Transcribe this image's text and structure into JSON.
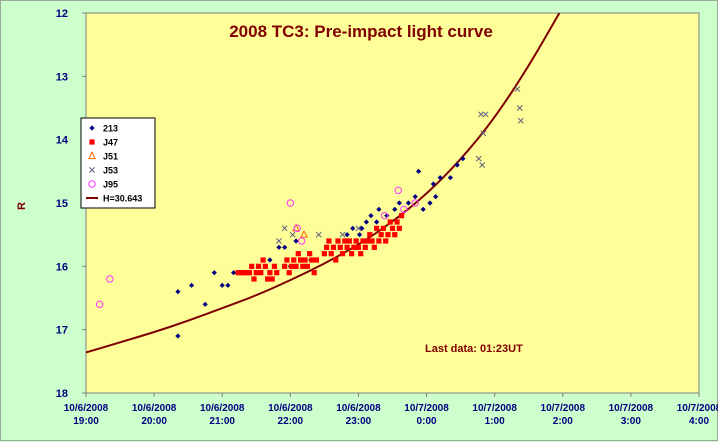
{
  "chart_data": {
    "type": "scatter",
    "title": "2008 TC3: Pre-impact light curve",
    "xlabel": "",
    "ylabel": "R",
    "annotation": "Last data: 01:23UT",
    "ylim": [
      12,
      18
    ],
    "y_inverted": true,
    "yticks": [
      "12",
      "13",
      "14",
      "15",
      "16",
      "17",
      "18"
    ],
    "xlim": [
      "2008-10-06T19:00",
      "2008-10-07T04:00"
    ],
    "xticks": [
      {
        "date": "10/6/2008",
        "time": "19:00"
      },
      {
        "date": "10/6/2008",
        "time": "20:00"
      },
      {
        "date": "10/6/2008",
        "time": "21:00"
      },
      {
        "date": "10/6/2008",
        "time": "22:00"
      },
      {
        "date": "10/6/2008",
        "time": "23:00"
      },
      {
        "date": "10/7/2008",
        "time": "0:00"
      },
      {
        "date": "10/7/2008",
        "time": "1:00"
      },
      {
        "date": "10/7/2008",
        "time": "2:00"
      },
      {
        "date": "10/7/2008",
        "time": "3:00"
      },
      {
        "date": "10/7/2008",
        "time": "4:00"
      }
    ],
    "grid": false,
    "legend_position": "left",
    "colors": {
      "plot_bg": "#ffff99",
      "outer_bg": "#ccffcc",
      "title": "#800000",
      "ticks": "#000080"
    },
    "series": [
      {
        "name": "213",
        "marker": "diamond",
        "color": "#000080",
        "points": [
          [
            "2008-10-06T20:21",
            16.4
          ],
          [
            "2008-10-06T20:21",
            17.1
          ],
          [
            "2008-10-06T20:33",
            16.3
          ],
          [
            "2008-10-06T20:45",
            16.6
          ],
          [
            "2008-10-06T20:53",
            16.1
          ],
          [
            "2008-10-06T21:00",
            16.3
          ],
          [
            "2008-10-06T21:05",
            16.3
          ],
          [
            "2008-10-06T21:10",
            16.1
          ],
          [
            "2008-10-06T21:42",
            15.9
          ],
          [
            "2008-10-06T21:50",
            15.7
          ],
          [
            "2008-10-06T21:55",
            15.7
          ],
          [
            "2008-10-06T22:00",
            16.0
          ],
          [
            "2008-10-06T22:05",
            15.6
          ],
          [
            "2008-10-06T22:12",
            15.9
          ],
          [
            "2008-10-06T22:18",
            15.9
          ],
          [
            "2008-10-06T22:50",
            15.5
          ],
          [
            "2008-10-06T22:55",
            15.4
          ],
          [
            "2008-10-06T23:01",
            15.5
          ],
          [
            "2008-10-06T23:03",
            15.4
          ],
          [
            "2008-10-06T23:07",
            15.3
          ],
          [
            "2008-10-06T23:11",
            15.2
          ],
          [
            "2008-10-06T23:16",
            15.3
          ],
          [
            "2008-10-06T23:18",
            15.1
          ],
          [
            "2008-10-06T23:25",
            15.2
          ],
          [
            "2008-10-06T23:32",
            15.1
          ],
          [
            "2008-10-06T23:36",
            15.0
          ],
          [
            "2008-10-06T23:44",
            15.0
          ],
          [
            "2008-10-06T23:50",
            14.9
          ],
          [
            "2008-10-06T23:53",
            14.5
          ],
          [
            "2008-10-06T23:57",
            15.1
          ],
          [
            "2008-10-07T00:03",
            15.0
          ],
          [
            "2008-10-07T00:06",
            14.7
          ],
          [
            "2008-10-07T00:08",
            14.9
          ],
          [
            "2008-10-07T00:12",
            14.6
          ],
          [
            "2008-10-07T00:21",
            14.6
          ],
          [
            "2008-10-07T00:27",
            14.4
          ],
          [
            "2008-10-07T00:32",
            14.3
          ]
        ]
      },
      {
        "name": "J47",
        "marker": "square",
        "color": "#ff0000",
        "points": [
          [
            "2008-10-06T21:14",
            16.1
          ],
          [
            "2008-10-06T21:16",
            16.1
          ],
          [
            "2008-10-06T21:18",
            16.1
          ],
          [
            "2008-10-06T21:20",
            16.1
          ],
          [
            "2008-10-06T21:22",
            16.1
          ],
          [
            "2008-10-06T21:24",
            16.1
          ],
          [
            "2008-10-06T21:26",
            16.0
          ],
          [
            "2008-10-06T21:28",
            16.2
          ],
          [
            "2008-10-06T21:30",
            16.1
          ],
          [
            "2008-10-06T21:32",
            16.0
          ],
          [
            "2008-10-06T21:34",
            16.1
          ],
          [
            "2008-10-06T21:36",
            15.9
          ],
          [
            "2008-10-06T21:38",
            16.0
          ],
          [
            "2008-10-06T21:40",
            16.2
          ],
          [
            "2008-10-06T21:42",
            16.1
          ],
          [
            "2008-10-06T21:44",
            16.2
          ],
          [
            "2008-10-06T21:46",
            16.0
          ],
          [
            "2008-10-06T21:48",
            16.1
          ],
          [
            "2008-10-06T21:55",
            16.0
          ],
          [
            "2008-10-06T21:57",
            15.9
          ],
          [
            "2008-10-06T21:59",
            16.1
          ],
          [
            "2008-10-06T22:01",
            16.0
          ],
          [
            "2008-10-06T22:03",
            15.9
          ],
          [
            "2008-10-06T22:05",
            16.0
          ],
          [
            "2008-10-06T22:07",
            15.8
          ],
          [
            "2008-10-06T22:09",
            15.9
          ],
          [
            "2008-10-06T22:11",
            16.0
          ],
          [
            "2008-10-06T22:13",
            15.9
          ],
          [
            "2008-10-06T22:15",
            16.0
          ],
          [
            "2008-10-06T22:17",
            15.8
          ],
          [
            "2008-10-06T22:19",
            15.9
          ],
          [
            "2008-10-06T22:21",
            16.1
          ],
          [
            "2008-10-06T22:23",
            15.9
          ],
          [
            "2008-10-06T22:30",
            15.8
          ],
          [
            "2008-10-06T22:32",
            15.7
          ],
          [
            "2008-10-06T22:34",
            15.6
          ],
          [
            "2008-10-06T22:36",
            15.8
          ],
          [
            "2008-10-06T22:38",
            15.7
          ],
          [
            "2008-10-06T22:40",
            15.9
          ],
          [
            "2008-10-06T22:42",
            15.6
          ],
          [
            "2008-10-06T22:44",
            15.7
          ],
          [
            "2008-10-06T22:46",
            15.8
          ],
          [
            "2008-10-06T22:48",
            15.6
          ],
          [
            "2008-10-06T22:50",
            15.7
          ],
          [
            "2008-10-06T22:52",
            15.6
          ],
          [
            "2008-10-06T22:54",
            15.8
          ],
          [
            "2008-10-06T22:56",
            15.7
          ],
          [
            "2008-10-06T22:58",
            15.6
          ],
          [
            "2008-10-06T23:00",
            15.7
          ],
          [
            "2008-10-06T23:02",
            15.8
          ],
          [
            "2008-10-06T23:04",
            15.6
          ],
          [
            "2008-10-06T23:06",
            15.7
          ],
          [
            "2008-10-06T23:08",
            15.6
          ],
          [
            "2008-10-06T23:10",
            15.5
          ],
          [
            "2008-10-06T23:12",
            15.6
          ],
          [
            "2008-10-06T23:14",
            15.7
          ],
          [
            "2008-10-06T23:16",
            15.4
          ],
          [
            "2008-10-06T23:18",
            15.6
          ],
          [
            "2008-10-06T23:20",
            15.5
          ],
          [
            "2008-10-06T23:22",
            15.4
          ],
          [
            "2008-10-06T23:24",
            15.6
          ],
          [
            "2008-10-06T23:26",
            15.5
          ],
          [
            "2008-10-06T23:28",
            15.3
          ],
          [
            "2008-10-06T23:30",
            15.4
          ],
          [
            "2008-10-06T23:32",
            15.5
          ],
          [
            "2008-10-06T23:34",
            15.3
          ],
          [
            "2008-10-06T23:36",
            15.4
          ],
          [
            "2008-10-06T23:38",
            15.2
          ]
        ]
      },
      {
        "name": "J51",
        "marker": "triangle",
        "color": "#ff6600",
        "points": [
          [
            "2008-10-06T22:05",
            15.4
          ],
          [
            "2008-10-06T22:12",
            15.5
          ]
        ]
      },
      {
        "name": "J53",
        "marker": "x",
        "color": "#606080",
        "points": [
          [
            "2008-10-06T21:50",
            15.6
          ],
          [
            "2008-10-06T21:55",
            15.4
          ],
          [
            "2008-10-06T22:02",
            15.5
          ],
          [
            "2008-10-06T22:25",
            15.5
          ],
          [
            "2008-10-06T22:46",
            15.5
          ],
          [
            "2008-10-06T23:00",
            15.4
          ],
          [
            "2008-10-07T00:48",
            13.6
          ],
          [
            "2008-10-07T00:50",
            13.9
          ],
          [
            "2008-10-07T00:46",
            14.3
          ],
          [
            "2008-10-07T00:49",
            14.4
          ],
          [
            "2008-10-07T00:52",
            13.6
          ],
          [
            "2008-10-07T01:20",
            13.2
          ],
          [
            "2008-10-07T01:22",
            13.5
          ],
          [
            "2008-10-07T01:23",
            13.7
          ]
        ]
      },
      {
        "name": "J95",
        "marker": "circle",
        "color": "#ff33ff",
        "points": [
          [
            "2008-10-06T19:12",
            16.6
          ],
          [
            "2008-10-06T19:21",
            16.2
          ],
          [
            "2008-10-06T22:00",
            15.0
          ],
          [
            "2008-10-06T22:06",
            15.4
          ],
          [
            "2008-10-06T22:10",
            15.6
          ],
          [
            "2008-10-06T23:23",
            15.2
          ],
          [
            "2008-10-06T23:35",
            14.8
          ],
          [
            "2008-10-06T23:40",
            15.1
          ],
          [
            "2008-10-06T23:50",
            15.0
          ]
        ]
      },
      {
        "name": "H=30.643",
        "type": "line",
        "color": "#800000",
        "points": [
          [
            "2008-10-06T19:00",
            17.36
          ],
          [
            "2008-10-06T19:30",
            17.2
          ],
          [
            "2008-10-06T20:00",
            17.04
          ],
          [
            "2008-10-06T20:30",
            16.86
          ],
          [
            "2008-10-06T21:00",
            16.66
          ],
          [
            "2008-10-06T21:30",
            16.46
          ],
          [
            "2008-10-06T22:00",
            16.22
          ],
          [
            "2008-10-06T22:30",
            15.96
          ],
          [
            "2008-10-06T23:00",
            15.66
          ],
          [
            "2008-10-06T23:30",
            15.3
          ],
          [
            "2008-10-07T00:00",
            14.86
          ],
          [
            "2008-10-07T00:30",
            14.32
          ],
          [
            "2008-10-07T01:00",
            13.66
          ],
          [
            "2008-10-07T01:30",
            12.84
          ],
          [
            "2008-10-07T01:57",
            12.0
          ]
        ]
      }
    ]
  }
}
